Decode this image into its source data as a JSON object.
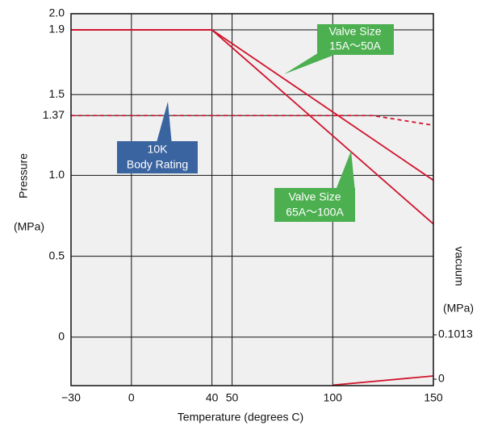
{
  "chart_data": {
    "type": "line",
    "x_label": "Temperature (degrees C)",
    "y_label": "Pressure",
    "y_unit": "(MPa)",
    "y2_label": "vacuum",
    "y2_unit": "(MPa)",
    "xlim": [
      -30,
      150
    ],
    "xticks": [
      {
        "value": -30,
        "label": "−30"
      },
      0,
      40,
      50,
      100,
      150
    ],
    "ylim": [
      -0.3,
      2.0
    ],
    "yticks": [
      {
        "value": 2.0,
        "label": "2.0"
      },
      1.9,
      1.5,
      1.37,
      {
        "value": 1.0,
        "label": "1.0"
      },
      0.5,
      0
    ],
    "y2lim": [
      -0.0147,
      0.8345
    ],
    "y2ticks": [
      0.1013,
      0
    ],
    "grid": true,
    "series": [
      {
        "name": "Valve Size 15A～50A",
        "color": "#d0142c",
        "dash": false,
        "x": [
          -30,
          40,
          150
        ],
        "values": [
          1.9,
          1.9,
          0.97
        ]
      },
      {
        "name": "Valve Size 65A～100A",
        "color": "#d0142c",
        "dash": false,
        "x": [
          -30,
          40,
          150
        ],
        "values": [
          1.9,
          1.9,
          0.7
        ]
      },
      {
        "name": "10K Body Rating",
        "color": "#d0142c",
        "dash": true,
        "x": [
          -30,
          120,
          150
        ],
        "values": [
          1.37,
          1.37,
          1.31
        ]
      },
      {
        "name": "vacuum",
        "color": "#d0142c",
        "dash": false,
        "x": [
          100,
          150
        ],
        "values": [
          -0.297,
          -0.24
        ]
      }
    ],
    "annotations": [
      {
        "lines": [
          "Valve Size",
          "15A～50A"
        ],
        "color": "#4caf50"
      },
      {
        "lines": [
          "10K",
          "Body Rating"
        ],
        "color": "#3a64a0"
      },
      {
        "lines": [
          "Valve Size",
          "65A～100A"
        ],
        "color": "#4caf50"
      }
    ]
  }
}
